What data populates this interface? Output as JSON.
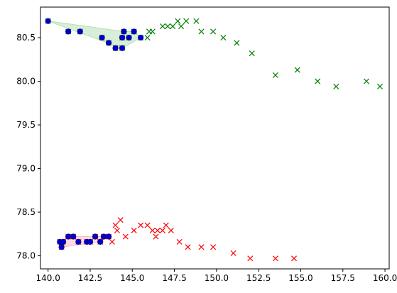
{
  "chart_data": {
    "type": "scatter",
    "title": "",
    "xlabel": "",
    "ylabel": "",
    "xlim": [
      139.55,
      160.25
    ],
    "ylim": [
      77.85,
      80.85
    ],
    "xticks": [
      140.0,
      142.5,
      145.0,
      147.5,
      150.0,
      152.5,
      155.0,
      157.5,
      160.0
    ],
    "xtick_labels": [
      "140.0",
      "142.5",
      "145.0",
      "147.5",
      "150.0",
      "152.5",
      "155.0",
      "157.5",
      "160.0"
    ],
    "yticks": [
      78.0,
      78.5,
      79.0,
      79.5,
      80.0,
      80.5
    ],
    "ytick_labels": [
      "78.0",
      "78.5",
      "79.0",
      "79.5",
      "80.0",
      "80.5"
    ],
    "grid": false,
    "legend": "none",
    "colors": {
      "upper_track": "#008000",
      "lower_track": "#ff0000",
      "cluster_marker_fill": "#0000cc",
      "upper_hull_fill": "#b3deb3",
      "lower_hull_fill": "#f5b8cc",
      "axes": "#000000"
    },
    "series": [
      {
        "marker": "x",
        "color": "#008000",
        "points": [
          [
            140.0,
            80.69
          ],
          [
            141.2,
            80.57
          ],
          [
            141.9,
            80.57
          ],
          [
            143.2,
            80.5
          ],
          [
            143.6,
            80.44
          ],
          [
            144.0,
            80.38
          ],
          [
            144.4,
            80.38
          ],
          [
            144.4,
            80.5
          ],
          [
            144.5,
            80.57
          ],
          [
            144.8,
            80.5
          ],
          [
            145.1,
            80.57
          ],
          [
            145.5,
            80.5
          ],
          [
            145.9,
            80.5
          ],
          [
            146.0,
            80.57
          ],
          [
            146.2,
            80.57
          ],
          [
            146.8,
            80.63
          ],
          [
            147.1,
            80.63
          ],
          [
            147.4,
            80.63
          ],
          [
            147.7,
            80.69
          ],
          [
            147.9,
            80.63
          ],
          [
            148.2,
            80.69
          ],
          [
            148.8,
            80.69
          ],
          [
            149.1,
            80.57
          ],
          [
            149.8,
            80.57
          ],
          [
            150.4,
            80.5
          ],
          [
            151.2,
            80.44
          ],
          [
            152.1,
            80.32
          ],
          [
            153.5,
            80.07
          ],
          [
            154.8,
            80.13
          ],
          [
            156.0,
            80.0
          ],
          [
            157.1,
            79.94
          ],
          [
            158.9,
            80.0
          ],
          [
            159.7,
            79.94
          ]
        ]
      },
      {
        "marker": "x",
        "color": "#ff0000",
        "points": [
          [
            140.7,
            78.16
          ],
          [
            140.8,
            78.1
          ],
          [
            140.9,
            78.16
          ],
          [
            141.2,
            78.22
          ],
          [
            141.5,
            78.22
          ],
          [
            141.8,
            78.16
          ],
          [
            142.3,
            78.16
          ],
          [
            142.5,
            78.16
          ],
          [
            142.8,
            78.22
          ],
          [
            143.1,
            78.16
          ],
          [
            143.3,
            78.22
          ],
          [
            143.6,
            78.22
          ],
          [
            143.8,
            78.16
          ],
          [
            144.0,
            78.35
          ],
          [
            144.1,
            78.29
          ],
          [
            144.3,
            78.41
          ],
          [
            144.6,
            78.22
          ],
          [
            145.1,
            78.29
          ],
          [
            145.5,
            78.35
          ],
          [
            145.9,
            78.35
          ],
          [
            146.2,
            78.29
          ],
          [
            146.4,
            78.22
          ],
          [
            146.5,
            78.29
          ],
          [
            146.8,
            78.29
          ],
          [
            147.0,
            78.35
          ],
          [
            147.3,
            78.29
          ],
          [
            147.8,
            78.16
          ],
          [
            148.3,
            78.1
          ],
          [
            149.1,
            78.1
          ],
          [
            149.8,
            78.1
          ],
          [
            151.0,
            78.03
          ],
          [
            152.0,
            77.97
          ],
          [
            153.5,
            77.97
          ],
          [
            154.6,
            77.97
          ]
        ]
      },
      {
        "marker": "o",
        "color": "#0000cc",
        "points": [
          [
            140.0,
            80.69
          ],
          [
            141.2,
            80.57
          ],
          [
            141.9,
            80.57
          ],
          [
            143.2,
            80.5
          ],
          [
            143.6,
            80.44
          ],
          [
            144.0,
            80.38
          ],
          [
            144.4,
            80.38
          ],
          [
            144.4,
            80.5
          ],
          [
            144.5,
            80.57
          ],
          [
            144.8,
            80.5
          ],
          [
            145.1,
            80.57
          ],
          [
            145.5,
            80.5
          ]
        ]
      },
      {
        "marker": "o",
        "color": "#0000cc",
        "points": [
          [
            140.7,
            78.16
          ],
          [
            140.8,
            78.1
          ],
          [
            140.9,
            78.16
          ],
          [
            141.2,
            78.22
          ],
          [
            141.5,
            78.22
          ],
          [
            141.8,
            78.16
          ],
          [
            142.3,
            78.16
          ],
          [
            142.5,
            78.16
          ],
          [
            142.8,
            78.22
          ],
          [
            143.1,
            78.16
          ],
          [
            143.3,
            78.22
          ],
          [
            143.6,
            78.22
          ]
        ]
      }
    ],
    "shaded_regions": [
      {
        "color": "#b3deb3",
        "polygon": [
          [
            140.0,
            80.69
          ],
          [
            144.4,
            80.38
          ],
          [
            145.5,
            80.5
          ],
          [
            145.1,
            80.57
          ],
          [
            144.5,
            80.57
          ]
        ]
      },
      {
        "color": "#f5b8cc",
        "polygon": [
          [
            140.7,
            78.16
          ],
          [
            140.8,
            78.1
          ],
          [
            143.1,
            78.16
          ],
          [
            143.6,
            78.22
          ],
          [
            141.2,
            78.22
          ]
        ]
      }
    ]
  }
}
